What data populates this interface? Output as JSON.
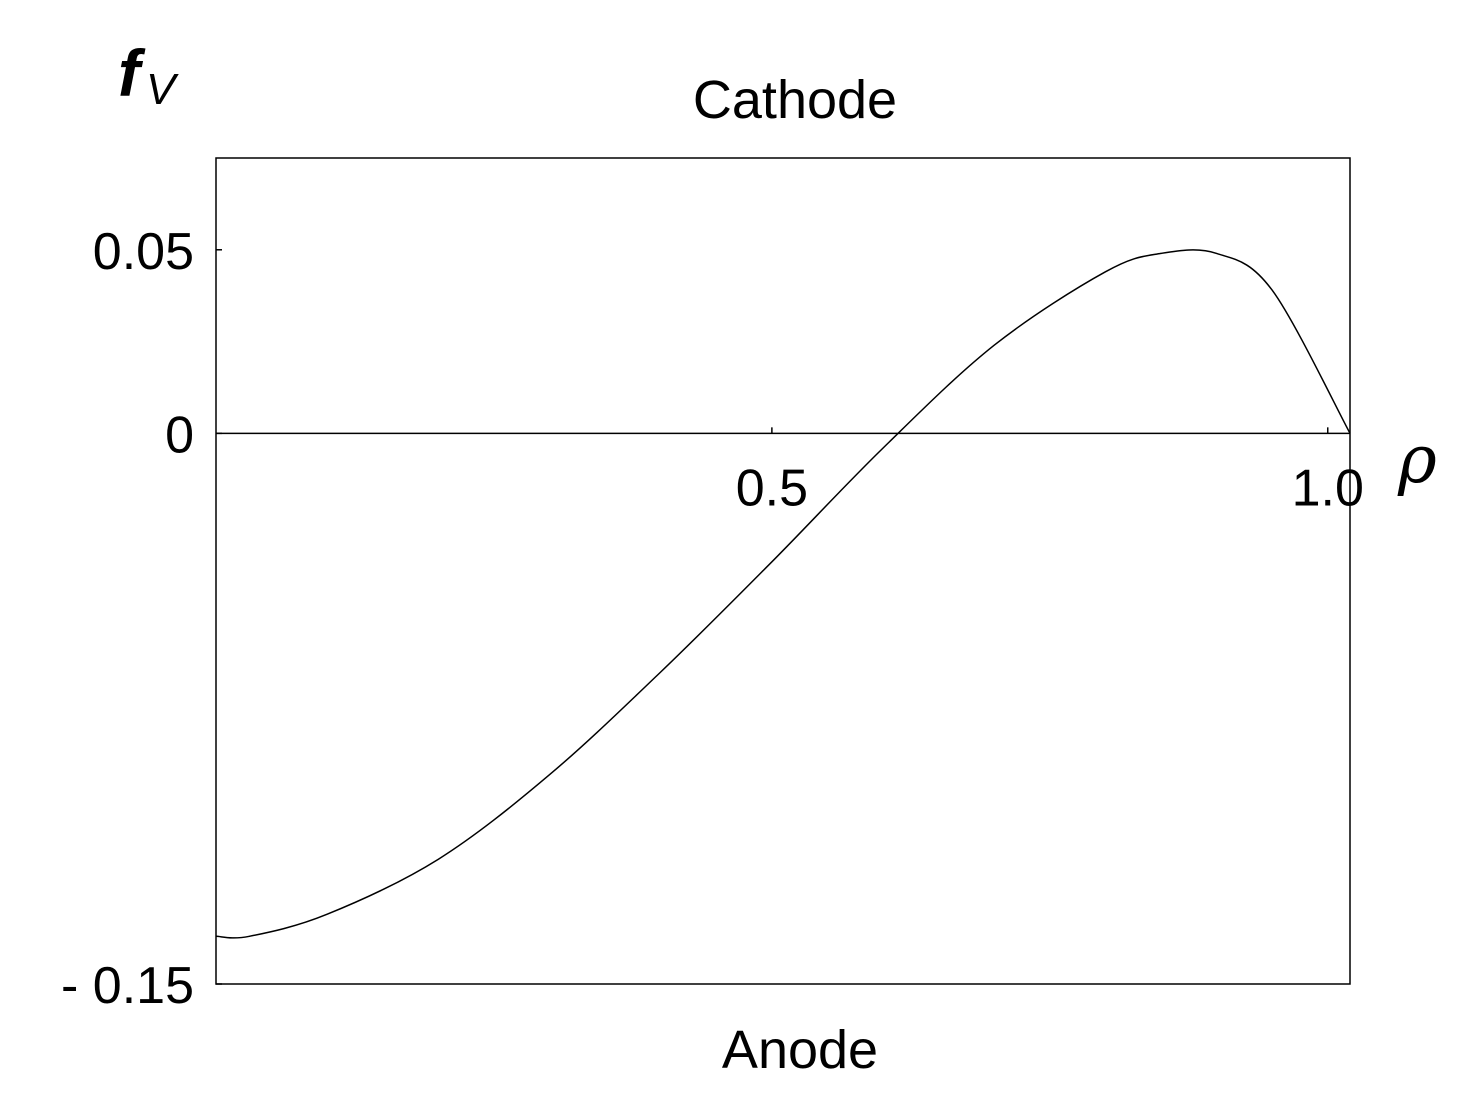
{
  "chart_data": {
    "type": "line",
    "ylabel": {
      "main": "f",
      "sub": "V"
    },
    "xlabel": "ρ",
    "annotations": {
      "top": "Cathode",
      "bottom": "Anode"
    },
    "xlim": [
      0,
      1.02
    ],
    "ylim": [
      -0.15,
      0.075
    ],
    "x_ticks": [
      {
        "value": 0.5,
        "label": "0.5"
      },
      {
        "value": 1.0,
        "label": "1.0"
      }
    ],
    "y_ticks": [
      {
        "value": 0.05,
        "label": "0.05"
      },
      {
        "value": 0,
        "label": "0"
      },
      {
        "value": -0.15,
        "label": "- 0.15"
      }
    ],
    "series": [
      {
        "x": [
          0,
          0.03,
          0.1,
          0.2,
          0.3,
          0.4,
          0.5,
          0.6,
          0.7,
          0.8,
          0.85,
          0.9,
          0.95,
          1.02
        ],
        "y": [
          -0.137,
          -0.137,
          -0.131,
          -0.116,
          -0.093,
          -0.065,
          -0.035,
          -0.004,
          0.024,
          0.044,
          0.049,
          0.049,
          0.039,
          0.0
        ]
      }
    ],
    "grid": false,
    "line_color": "#000000"
  }
}
